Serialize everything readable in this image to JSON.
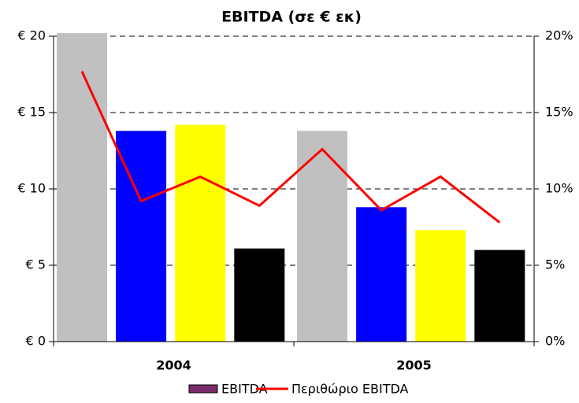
{
  "chart_data": {
    "type": "bar",
    "title": "EBITDA (σε € εκ)",
    "groups": [
      "2004",
      "2005"
    ],
    "series": [
      {
        "name": "EBITDA",
        "color": "#7a2b6c",
        "colors": [
          "#c0c0c0",
          "#0000ff",
          "#ffff00",
          "#000000",
          "#c0c0c0",
          "#0000ff",
          "#ffff00",
          "#000000"
        ],
        "values": [
          20.2,
          13.8,
          14.2,
          6.1,
          13.8,
          8.8,
          7.3,
          6.0
        ]
      },
      {
        "name": "Περιθώριο EBITDA",
        "type": "line",
        "color": "#ff0000",
        "axis": "y2",
        "values": [
          17.7,
          9.2,
          10.8,
          8.9,
          12.6,
          8.6,
          10.8,
          7.8
        ]
      }
    ],
    "ylim": [
      0,
      20
    ],
    "yticks": [
      {
        "value": 0,
        "label": "€ 0"
      },
      {
        "value": 5,
        "label": "€ 5"
      },
      {
        "value": 10,
        "label": "€ 10"
      },
      {
        "value": 15,
        "label": "€ 15"
      },
      {
        "value": 20,
        "label": "€ 20"
      }
    ],
    "y2lim": [
      0,
      20
    ],
    "y2ticks": [
      {
        "value": 0,
        "label": "0%"
      },
      {
        "value": 5,
        "label": "5%"
      },
      {
        "value": 10,
        "label": "10%"
      },
      {
        "value": 15,
        "label": "15%"
      },
      {
        "value": 20,
        "label": "20%"
      }
    ],
    "grid": true,
    "legend": "bottom"
  }
}
